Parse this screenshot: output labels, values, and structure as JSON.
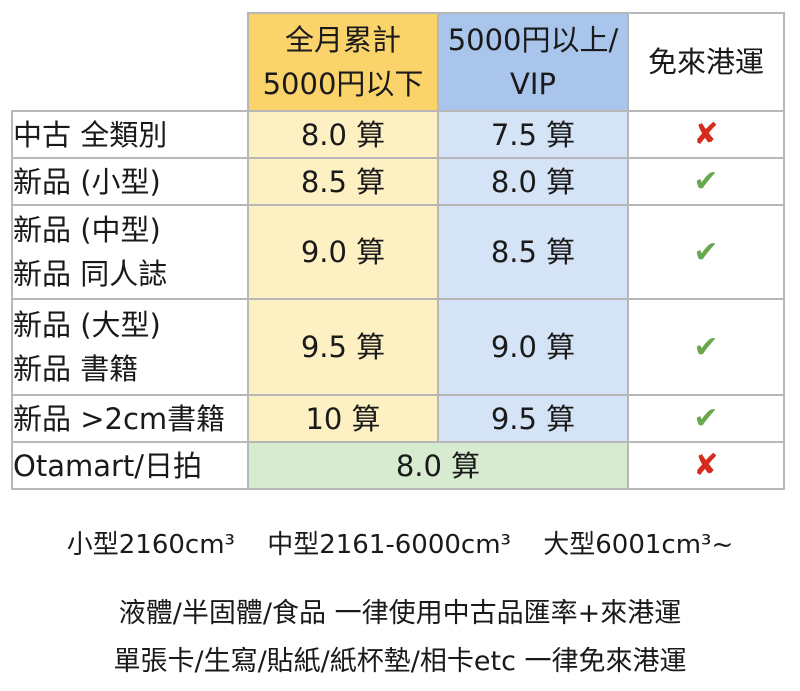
{
  "table": {
    "headers": {
      "tier1": [
        "全月累計",
        "5000円以下"
      ],
      "tier2": [
        "5000円以上/",
        "VIP"
      ],
      "free": "免來港運"
    },
    "rows": [
      {
        "label": [
          "中古 全類別"
        ],
        "tier1": "8.0 算",
        "tier2": "7.5 算",
        "free": "✘",
        "free_type": "cross"
      },
      {
        "label": [
          "新品 (小型)"
        ],
        "tier1": "8.5 算",
        "tier2": "8.0 算",
        "free": "✔",
        "free_type": "check"
      },
      {
        "label": [
          "新品 (中型)",
          "新品 同人誌"
        ],
        "tier1": "9.0 算",
        "tier2": "8.5 算",
        "free": "✔",
        "free_type": "check"
      },
      {
        "label": [
          "新品 (大型)",
          "新品 書籍"
        ],
        "tier1": "9.5 算",
        "tier2": "9.0 算",
        "free": "✔",
        "free_type": "check"
      },
      {
        "label": [
          "新品 >2cm書籍"
        ],
        "tier1": "10 算",
        "tier2": "9.5 算",
        "free": "✔",
        "free_type": "check"
      }
    ],
    "merged_row": {
      "label": "Otamart/日拍",
      "value": "8.0 算",
      "free": "✘",
      "free_type": "cross"
    }
  },
  "colors": {
    "tier1_header": "#fbd36b",
    "tier1_cell": "#fdf1c4",
    "tier2_header": "#a9c5ec",
    "tier2_cell": "#d5e3f6",
    "merged_cell": "#d6ebcf",
    "check": "#6aa84f",
    "cross": "#d62b1f"
  },
  "notes": {
    "sizes": [
      "小型2160cm³",
      "中型2161-6000cm³",
      "大型6001cm³~"
    ],
    "line1": "液體/半固體/食品 一律使用中古品匯率+來港運",
    "line2": "單張卡/生寫/貼紙/紙杯墊/相卡etc 一律免來港運"
  }
}
